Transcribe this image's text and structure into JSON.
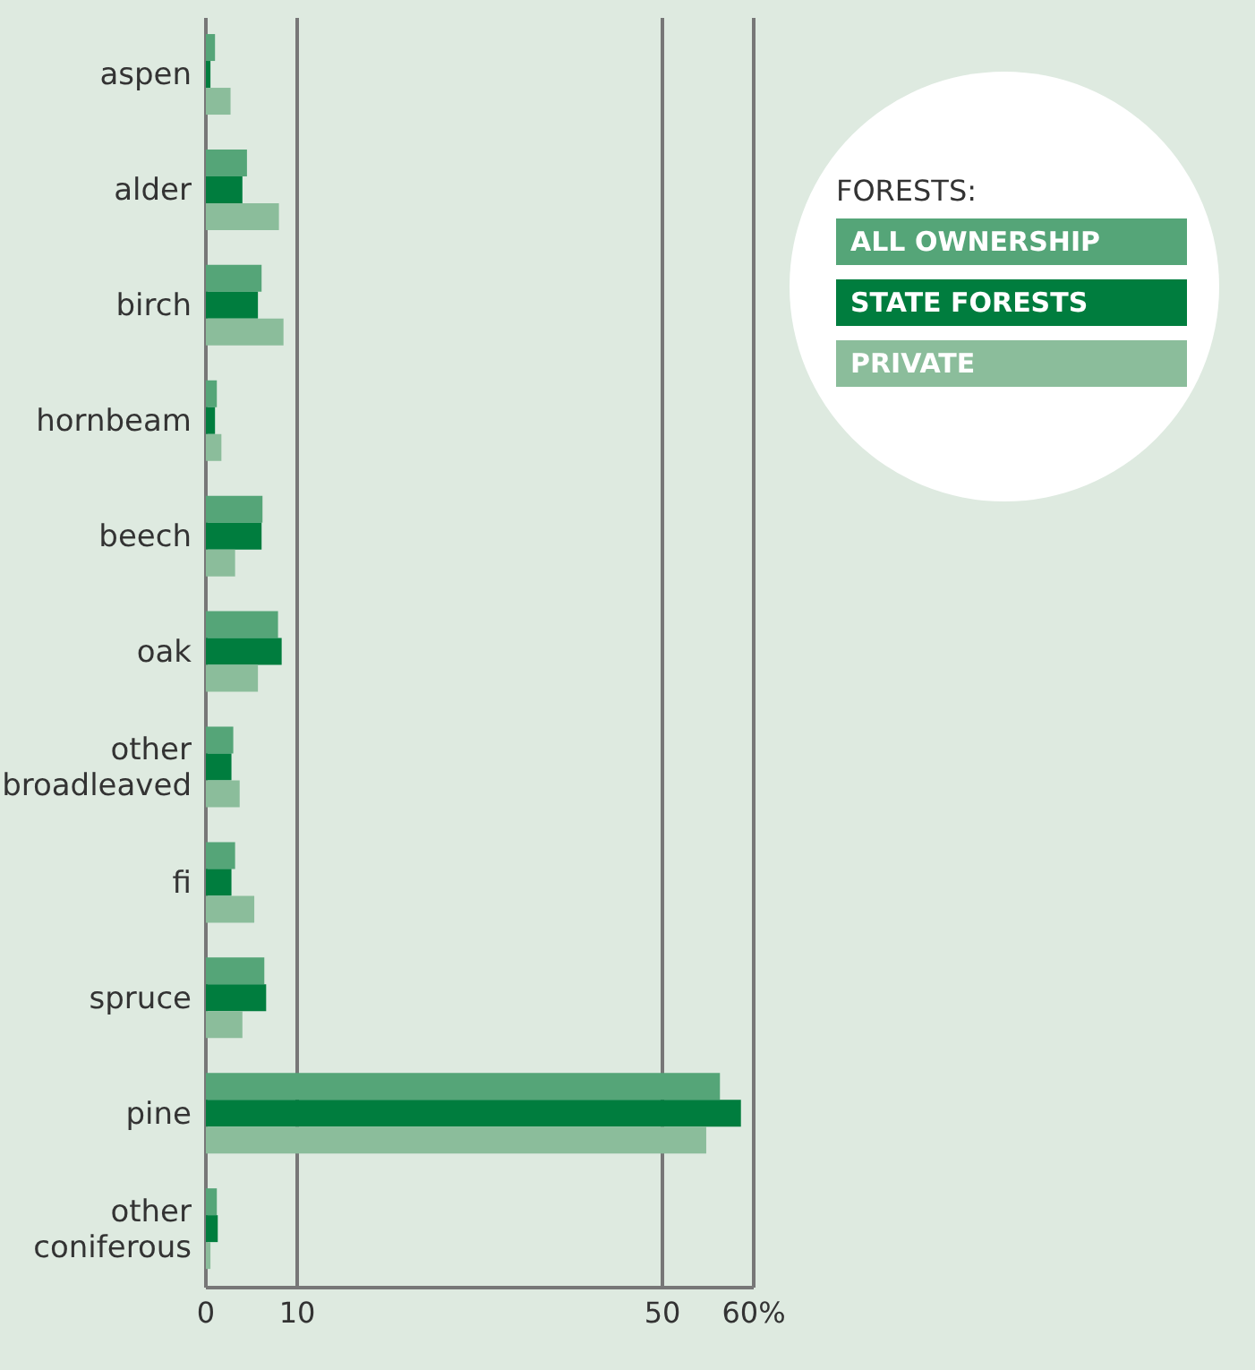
{
  "chart_data": {
    "type": "bar",
    "orientation": "horizontal",
    "legend_title": "FORESTS:",
    "legend": "top right",
    "grid": "x",
    "categories": [
      "aspen",
      "alder",
      "birch",
      "hornbeam",
      "beech",
      "oak",
      "other broadleaved",
      "fi",
      "spruce",
      "pine",
      "other coniferous"
    ],
    "series": [
      {
        "name": "ALL OWNERSHIP",
        "color": "#55a578",
        "values": [
          1.0,
          4.5,
          6.1,
          1.2,
          6.2,
          7.9,
          3.0,
          3.2,
          6.4,
          56.3,
          1.2
        ]
      },
      {
        "name": "STATE FORESTS",
        "color": "#007d3e",
        "values": [
          0.5,
          4.0,
          5.7,
          1.0,
          6.1,
          8.3,
          2.8,
          2.8,
          6.6,
          58.6,
          1.3
        ]
      },
      {
        "name": "PRIVATE",
        "color": "#8bbd9b",
        "values": [
          2.7,
          8.0,
          8.5,
          1.7,
          3.2,
          5.7,
          3.7,
          5.3,
          4.0,
          54.8,
          0.5
        ]
      }
    ],
    "xlim": [
      0,
      60
    ],
    "xticks": [
      0,
      10,
      50,
      {
        "value": 60,
        "label": "60%"
      }
    ]
  }
}
